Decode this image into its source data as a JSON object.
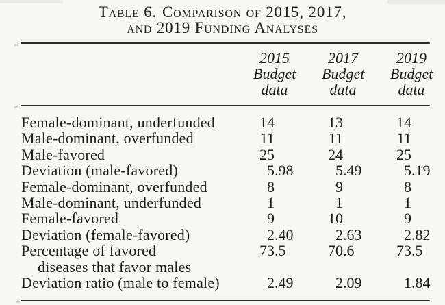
{
  "title": {
    "label": "Table 6.",
    "line1": "Comparison of 2015, 2017,",
    "line2": "and 2019 Funding Analyses"
  },
  "columns": [
    {
      "year": "2015",
      "line2": "Budget",
      "line3": "data"
    },
    {
      "year": "2017",
      "line2": "Budget",
      "line3": "data"
    },
    {
      "year": "2019",
      "line2": "Budget",
      "line3": "data"
    }
  ],
  "rows": [
    {
      "label": "Female-dominant, underfunded",
      "values": [
        "14",
        "13",
        "14"
      ]
    },
    {
      "label": "Male-dominant, overfunded",
      "values": [
        "11",
        "11",
        "11"
      ]
    },
    {
      "label": "Male-favored",
      "values": [
        "25",
        "24",
        "25"
      ]
    },
    {
      "label": "Deviation (male-favored)",
      "values": [
        "5.98",
        "5.49",
        "5.19"
      ]
    },
    {
      "label": "Female-dominant, overfunded",
      "values": [
        "8",
        "9",
        "8"
      ]
    },
    {
      "label": "Male-dominant, underfunded",
      "values": [
        "1",
        "1",
        "1"
      ]
    },
    {
      "label": "Female-favored",
      "values": [
        "9",
        "10",
        "9"
      ]
    },
    {
      "label": "Deviation (female-favored)",
      "values": [
        "2.40",
        "2.63",
        "2.82"
      ]
    },
    {
      "label": "Percentage of favored",
      "label_line2": "diseases that favor males",
      "values": [
        "73.5",
        "70.6",
        "73.5"
      ]
    },
    {
      "label": "Deviation ratio (male to female)",
      "values": [
        "2.49",
        "2.09",
        "1.84"
      ]
    }
  ],
  "colors": {
    "background": "#f7f7f5",
    "text": "#1e1e1c",
    "rule": "#2c2c2a"
  }
}
